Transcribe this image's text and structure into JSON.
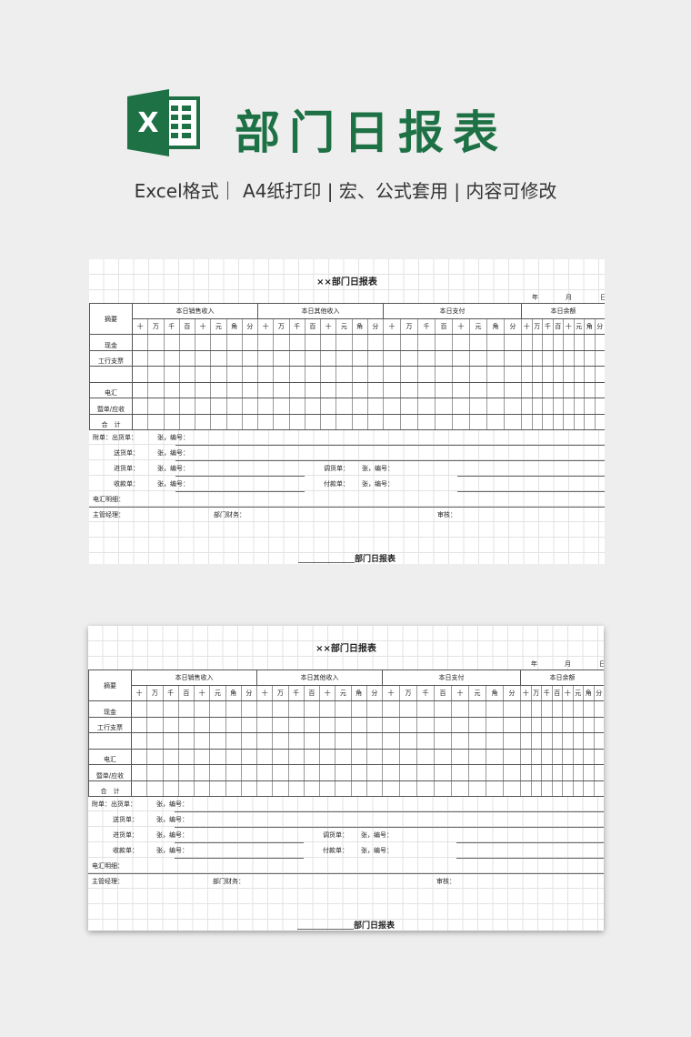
{
  "banner": {
    "logo_letter": "X",
    "title": "部门日报表",
    "subtitle": "Excel格式｜ A4纸打印 | 宏、公式套用 | 内容可修改",
    "brand_color": "#1e7145"
  },
  "sheet": {
    "title": "××部门日报表",
    "date": {
      "year": "年",
      "month": "月",
      "day": "日"
    },
    "summary_header": "摘要",
    "groups": [
      "本日销售收入",
      "本日其他收入",
      "本日支付",
      "本日余额"
    ],
    "digit_columns": [
      "十",
      "万",
      "千",
      "百",
      "十",
      "元",
      "角",
      "分"
    ],
    "rows": [
      "现金",
      "工行支票",
      "",
      "电汇",
      "暨单/应收",
      "合　计"
    ],
    "attachments": {
      "prefix": "附单：出货单：",
      "count_label": "张，编号：",
      "delivery": "送货单：",
      "purchase": "进货单：",
      "transfer": "调货单：",
      "receipt": "收款单：",
      "payment": "付款单：",
      "wire_detail": "电汇明细：",
      "manager": "主管经理：",
      "finance": "部门财务：",
      "review": "审核："
    },
    "footer_title": "部门日报表"
  }
}
